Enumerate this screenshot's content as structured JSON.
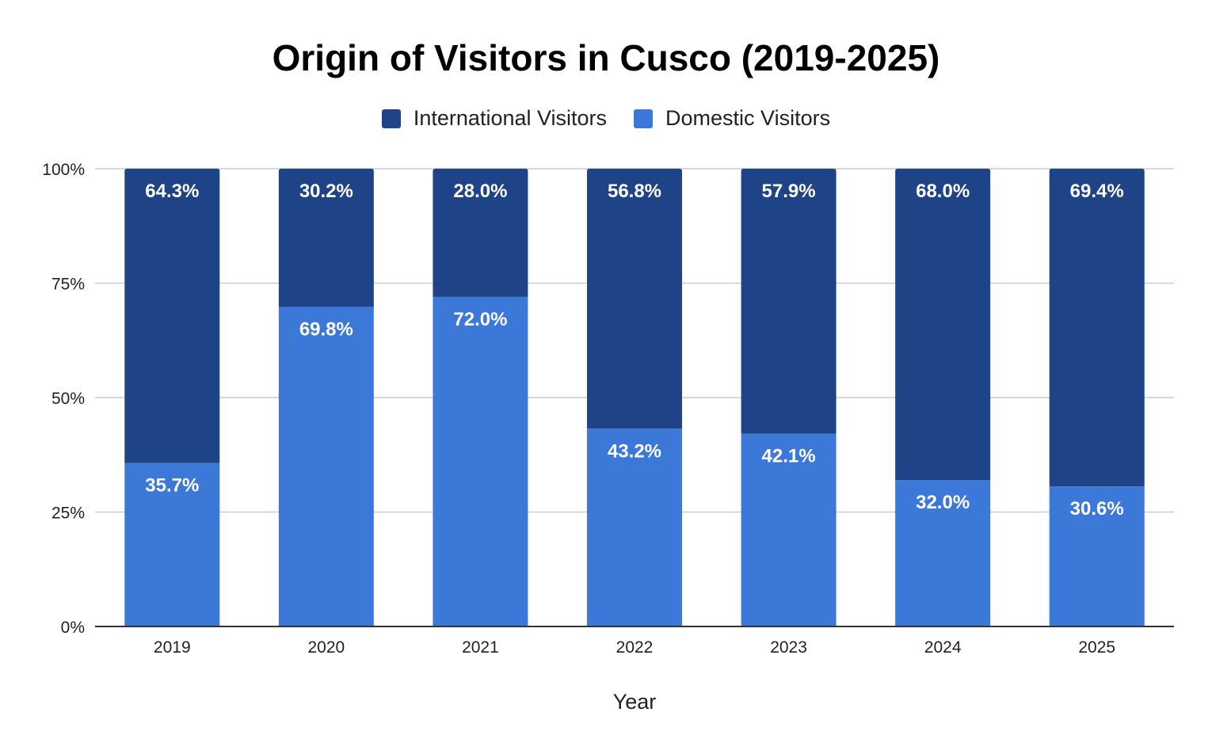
{
  "chart_data": {
    "type": "bar",
    "stacked": true,
    "title": "Origin of Visitors in Cusco (2019-2025)",
    "xlabel": "Year",
    "ylabel": "",
    "ylim": [
      0,
      100
    ],
    "y_ticks": [
      "0%",
      "25%",
      "50%",
      "75%",
      "100%"
    ],
    "grid": true,
    "legend_position": "top",
    "categories": [
      "2019",
      "2020",
      "2021",
      "2022",
      "2023",
      "2024",
      "2025"
    ],
    "series": [
      {
        "name": "International Visitors",
        "color": "#1f4387",
        "values": [
          64.3,
          30.2,
          28.0,
          56.8,
          57.9,
          68.0,
          69.4
        ],
        "labels": [
          "64.3%",
          "30.2%",
          "28.0%",
          "56.8%",
          "57.9%",
          "68.0%",
          "69.4%"
        ]
      },
      {
        "name": "Domestic Visitors",
        "color": "#3c78d8",
        "values": [
          35.7,
          69.8,
          72.0,
          43.2,
          42.1,
          32.0,
          30.6
        ],
        "labels": [
          "35.7%",
          "69.8%",
          "72.0%",
          "43.2%",
          "42.1%",
          "32.0%",
          "30.6%"
        ]
      }
    ]
  }
}
